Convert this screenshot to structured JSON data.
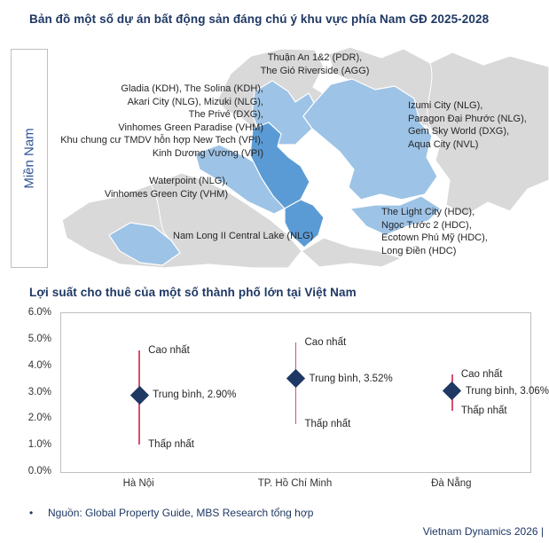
{
  "titles": {
    "map": "Bản đồ một số dự án bất động sản đáng chú ý khu vực phía Nam GĐ 2025-2028",
    "chart": "Lợi suất cho thuê của một số thành phố lớn tại Việt Nam"
  },
  "region_label": "Miền Nam",
  "map_labels": {
    "thuan_an": [
      "Thuận An 1&2 (PDR),",
      "The Gió Riverside (AGG)"
    ],
    "west_block": [
      "Gladia (KDH), The Solina (KDH),",
      "Akari City (NLG), Mizuki (NLG),",
      "The Privé (DXG),",
      "Vinhomes Green Paradise (VHM)",
      "Khu chung cư TMDV hỗn hợp New Tech (VPI),",
      "Kinh Dương Vương (VPI)"
    ],
    "east_block": [
      "Izumi City (NLG),",
      "Paragon Đại Phước (NLG),",
      "Gem Sky World (DXG),",
      "Aqua City (NVL)"
    ],
    "waterpoint_block": [
      "Waterpoint (NLG),",
      "Vinhomes Green City (VHM)"
    ],
    "namlong": "Nam Long II Central Lake (NLG)",
    "lightcity_block": [
      "The Light City (HDC),",
      "Ngọc Tước 2 (HDC),",
      "Ecotown Phú Mỹ (HDC),",
      "Long Điền (HDC)"
    ]
  },
  "chart_data": {
    "type": "scatter",
    "title": "Lợi suất cho thuê của một số thành phố lớn tại Việt Nam",
    "categories": [
      "Hà Nội",
      "TP. Hồ Chí Minh",
      "Đà Nẵng"
    ],
    "ylim": [
      0,
      6
    ],
    "ytick_labels": [
      "0.0%",
      "1.0%",
      "2.0%",
      "3.0%",
      "4.0%",
      "5.0%",
      "6.0%"
    ],
    "grid": false,
    "legend": "none",
    "series": [
      {
        "name": "Cao nhất",
        "role": "high",
        "values": [
          4.6,
          4.9,
          3.7
        ]
      },
      {
        "name": "Trung bình",
        "role": "avg",
        "values": [
          2.9,
          3.52,
          3.06
        ]
      },
      {
        "name": "Thấp nhất",
        "role": "low",
        "values": [
          1.05,
          1.8,
          2.3
        ]
      }
    ],
    "point_labels": [
      {
        "high": "Cao nhất",
        "avg": "Trung bình, 2.90%",
        "low": "Thấp nhất"
      },
      {
        "high": "Cao nhất",
        "avg": "Trung bình, 3.52%",
        "low": "Thấp nhất"
      },
      {
        "high": "Cao nhất",
        "avg": "Trung bình, 3.06%",
        "low": "Thấp nhất"
      }
    ],
    "marker_color": "#1F3864",
    "hilo_line_color": "#D94F70"
  },
  "map_colors": {
    "base_gray": "#D9D9D9",
    "highlight_light_blue": "#9DC3E6",
    "highlight_medium_blue": "#5B9BD5"
  },
  "footer": {
    "bullet": "•",
    "source": "Nguồn: Global Property Guide, MBS Research tổng hợp",
    "brand": "Vietnam Dynamics 2026 |"
  }
}
